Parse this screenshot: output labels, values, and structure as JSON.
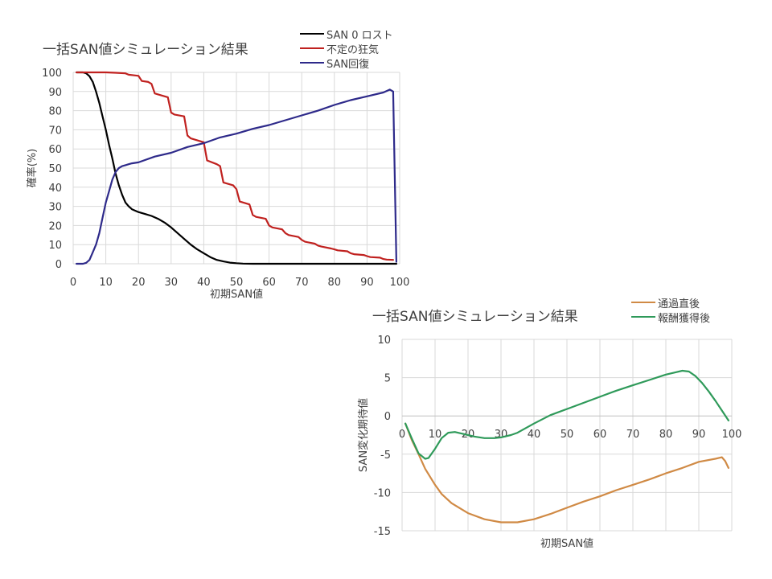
{
  "chart_data": [
    {
      "type": "line",
      "title": "一括SAN値シミュレーション結果",
      "xlabel": "初期SAN値",
      "ylabel": "確率(%)",
      "xlim": [
        0,
        100
      ],
      "ylim": [
        0,
        100
      ],
      "x_ticks": [
        "0",
        "10",
        "20",
        "30",
        "40",
        "50",
        "60",
        "70",
        "80",
        "90",
        "100"
      ],
      "y_ticks": [
        "0",
        "10",
        "20",
        "30",
        "40",
        "50",
        "60",
        "70",
        "80",
        "90",
        "100"
      ],
      "grid": true,
      "legend_position": "top-right",
      "series": [
        {
          "name": "SAN 0 ロスト",
          "color": "#000000",
          "x": [
            1,
            3,
            4,
            5,
            6,
            7,
            8,
            9,
            10,
            11,
            12,
            13,
            14,
            15,
            16,
            17,
            18,
            20,
            22,
            24,
            26,
            28,
            30,
            32,
            34,
            36,
            38,
            40,
            42,
            44,
            46,
            48,
            50,
            52,
            55,
            60,
            70,
            80,
            90,
            99
          ],
          "y": [
            100,
            100,
            99.5,
            98,
            95,
            90,
            84,
            77,
            70,
            62,
            55,
            47,
            41,
            36,
            32,
            30,
            28.5,
            27,
            26,
            25,
            23.5,
            21.5,
            19,
            16,
            13,
            10,
            7.5,
            5.5,
            3.5,
            2,
            1.2,
            0.6,
            0.3,
            0.1,
            0,
            0,
            0,
            0,
            0,
            0
          ]
        },
        {
          "name": "不定の狂気",
          "color": "#c0211f",
          "x": [
            1,
            10,
            13,
            16,
            17,
            19,
            20,
            21,
            23,
            24,
            25,
            26,
            29,
            30,
            31,
            34,
            35,
            36,
            39,
            40,
            41,
            44,
            45,
            46,
            49,
            50,
            51,
            54,
            55,
            56,
            59,
            60,
            61,
            64,
            65,
            66,
            69,
            70,
            71,
            74,
            75,
            76,
            79,
            80,
            81,
            84,
            85,
            86,
            89,
            90,
            91,
            94,
            95,
            96,
            98
          ],
          "y": [
            100,
            100,
            99.8,
            99.5,
            98.8,
            98.4,
            98.2,
            95.5,
            95,
            94,
            89,
            88.5,
            87,
            79,
            78,
            77,
            67,
            65.5,
            64,
            63.5,
            54,
            52,
            51,
            42.5,
            41,
            39,
            32.5,
            31,
            25.5,
            24.5,
            23.5,
            20,
            19,
            18,
            16,
            15,
            14,
            12.5,
            11.5,
            10.5,
            9.5,
            9,
            8,
            7.5,
            7,
            6.5,
            5.5,
            5,
            4.6,
            4,
            3.5,
            3.2,
            2.5,
            2.2,
            2
          ]
        },
        {
          "name": "SAN回復",
          "color": "#2e2a8a",
          "x": [
            1,
            3,
            4,
            5,
            6,
            7,
            8,
            9,
            10,
            11,
            12,
            13,
            14,
            15,
            16,
            17,
            18,
            20,
            25,
            30,
            35,
            40,
            45,
            50,
            55,
            60,
            65,
            70,
            75,
            80,
            85,
            90,
            95,
            97,
            98,
            99
          ],
          "y": [
            0,
            0,
            0.5,
            2,
            6,
            10,
            16,
            24,
            32,
            38,
            44,
            48,
            50,
            51,
            51.5,
            52,
            52.5,
            53,
            56,
            58,
            61,
            63,
            66,
            68,
            70.5,
            72.5,
            75,
            77.5,
            80,
            83,
            85.5,
            87.5,
            89.5,
            91,
            90,
            1
          ]
        }
      ]
    },
    {
      "type": "line",
      "title": "一括SAN値シミュレーション結果",
      "xlabel": "初期SAN値",
      "ylabel": "SAN変化期待値",
      "xlim": [
        0,
        100
      ],
      "ylim": [
        -15,
        10
      ],
      "x_ticks": [
        "0",
        "10",
        "20",
        "30",
        "40",
        "50",
        "60",
        "70",
        "80",
        "90",
        "100"
      ],
      "y_ticks": [
        "10",
        "5",
        "0",
        "-5",
        "-10",
        "-15"
      ],
      "grid": true,
      "legend_position": "top-right",
      "series": [
        {
          "name": "通過直後",
          "color": "#d08a45",
          "x": [
            1,
            3,
            5,
            7,
            10,
            12,
            15,
            20,
            25,
            30,
            35,
            40,
            45,
            50,
            55,
            60,
            65,
            70,
            75,
            80,
            85,
            90,
            95,
            97,
            98,
            99
          ],
          "y": [
            -1,
            -3.2,
            -5,
            -6.9,
            -9,
            -10.2,
            -11.4,
            -12.7,
            -13.5,
            -13.9,
            -13.9,
            -13.5,
            -12.8,
            -12,
            -11.2,
            -10.5,
            -9.7,
            -9,
            -8.3,
            -7.5,
            -6.8,
            -6,
            -5.6,
            -5.4,
            -5.9,
            -6.8
          ]
        },
        {
          "name": "報酬獲得後",
          "color": "#2f9a5a",
          "x": [
            1,
            3,
            5,
            7,
            8,
            10,
            12,
            14,
            16,
            18,
            20,
            22,
            25,
            28,
            30,
            33,
            35,
            40,
            45,
            50,
            55,
            60,
            65,
            70,
            75,
            80,
            83,
            85,
            87,
            89,
            91,
            93,
            95,
            97,
            99
          ],
          "y": [
            -1,
            -3,
            -4.9,
            -5.6,
            -5.5,
            -4.3,
            -2.9,
            -2.2,
            -2.1,
            -2.3,
            -2.5,
            -2.7,
            -2.9,
            -2.9,
            -2.8,
            -2.5,
            -2.2,
            -1,
            0.1,
            0.9,
            1.7,
            2.5,
            3.3,
            4,
            4.7,
            5.4,
            5.7,
            5.9,
            5.8,
            5.2,
            4.3,
            3.2,
            2,
            0.7,
            -0.6
          ]
        }
      ]
    }
  ]
}
